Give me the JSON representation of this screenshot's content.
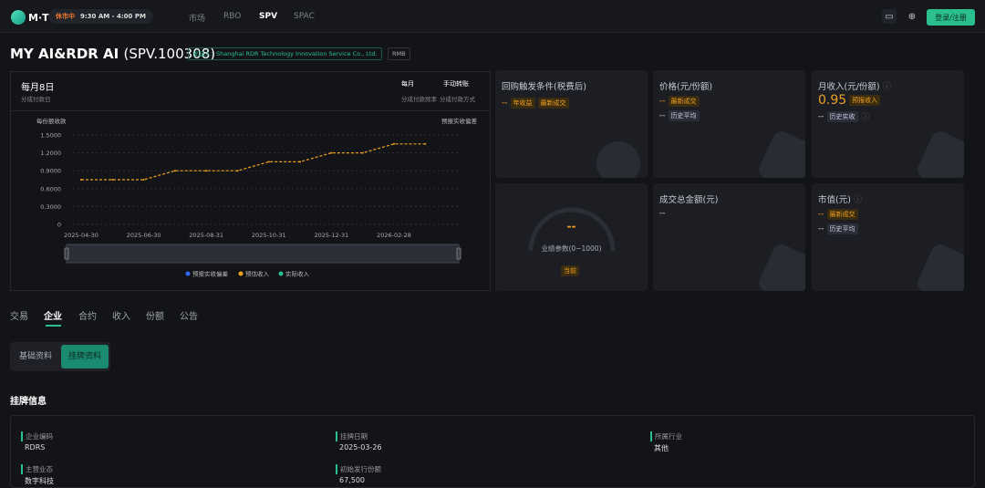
{
  "header": {
    "logo": "M·T",
    "status": "休市中",
    "hours": "9:30 AM - 4:00 PM",
    "nav": [
      "市场",
      "RBO",
      "SPV",
      "SPAC"
    ],
    "active_nav": "SPV",
    "login": "登录/注册"
  },
  "product": {
    "name": "MY AI&RDR AI",
    "code": "(SPV.100308)",
    "issuer": "发起人：Shanghai RDR Technology Innovation Service Co., Ltd.",
    "currency": "RMB"
  },
  "summary": {
    "payday": "每月8日",
    "payday_label": "分成付款日",
    "freq": "每月",
    "freq_label": "分成付款频率",
    "method": "手动转账",
    "method_label": "分成付款方式"
  },
  "chart_data": {
    "type": "line",
    "ylabel": "每份额收款",
    "toggle": "预报实收偏差",
    "categories": [
      "2025-04-30",
      "2025-05-31",
      "2025-06-30",
      "2025-07-31",
      "2025-08-31",
      "2025-09-30",
      "2025-10-31",
      "2025-11-30",
      "2025-12-31",
      "2026-01-31",
      "2026-02-28",
      "2026-03-31"
    ],
    "xticks": [
      "2025-04-30",
      "2025-06-30",
      "2025-08-31",
      "2025-10-31",
      "2025-12-31",
      "2026-02-28"
    ],
    "yticks": [
      "0",
      "0.3000",
      "0.6000",
      "0.9000",
      "1.2000",
      "1.5000"
    ],
    "ylim": [
      0,
      1.5
    ],
    "series": [
      {
        "name": "预估收入",
        "color": "#f0a020",
        "values": [
          0.75,
          0.75,
          0.75,
          0.9,
          0.9,
          0.9,
          1.05,
          1.05,
          1.2,
          1.2,
          1.35,
          1.35
        ]
      }
    ],
    "legend": [
      {
        "name": "预报实收偏差",
        "color": "#2f6bff"
      },
      {
        "name": "预估收入",
        "color": "#f0a020"
      },
      {
        "name": "实际收入",
        "color": "#2bbf8e"
      }
    ],
    "grid": true,
    "legend_position": "bottom"
  },
  "cards": {
    "buyback": {
      "title": "回购触发条件(税费后)",
      "value": "--",
      "tag1": "年收益",
      "tag2": "最新成交"
    },
    "price": {
      "title": "价格(元/份额)",
      "latest": "--",
      "latest_tag": "最新成交",
      "avg": "--",
      "avg_tag": "历史平均"
    },
    "income": {
      "title": "月收入(元/份额)",
      "value": "0.95",
      "value_tag": "预报收入",
      "actual": "--",
      "actual_tag": "历史实收"
    },
    "gauge": {
      "value": "--",
      "label": "业绩参数(0~1000)",
      "tag": "当前"
    },
    "volume": {
      "title": "成交总金额(元)",
      "value": "--"
    },
    "mcap": {
      "title": "市值(元)",
      "latest": "--",
      "latest_tag": "最新成交",
      "avg": "--",
      "avg_tag": "历史平均"
    }
  },
  "tabs": [
    "交易",
    "企业",
    "合约",
    "收入",
    "份额",
    "公告"
  ],
  "active_tab": "企业",
  "subtabs": [
    "基础资料",
    "挂牌资料"
  ],
  "listing": {
    "title": "挂牌信息",
    "fields": [
      {
        "label": "企业编码",
        "value": "RDRS"
      },
      {
        "label": "挂牌日期",
        "value": "2025-03-26"
      },
      {
        "label": "所属行业",
        "value": "其他"
      },
      {
        "label": "主营业态",
        "value": "数字科技"
      },
      {
        "label": "初始发行份额",
        "value": "67,500"
      }
    ]
  }
}
